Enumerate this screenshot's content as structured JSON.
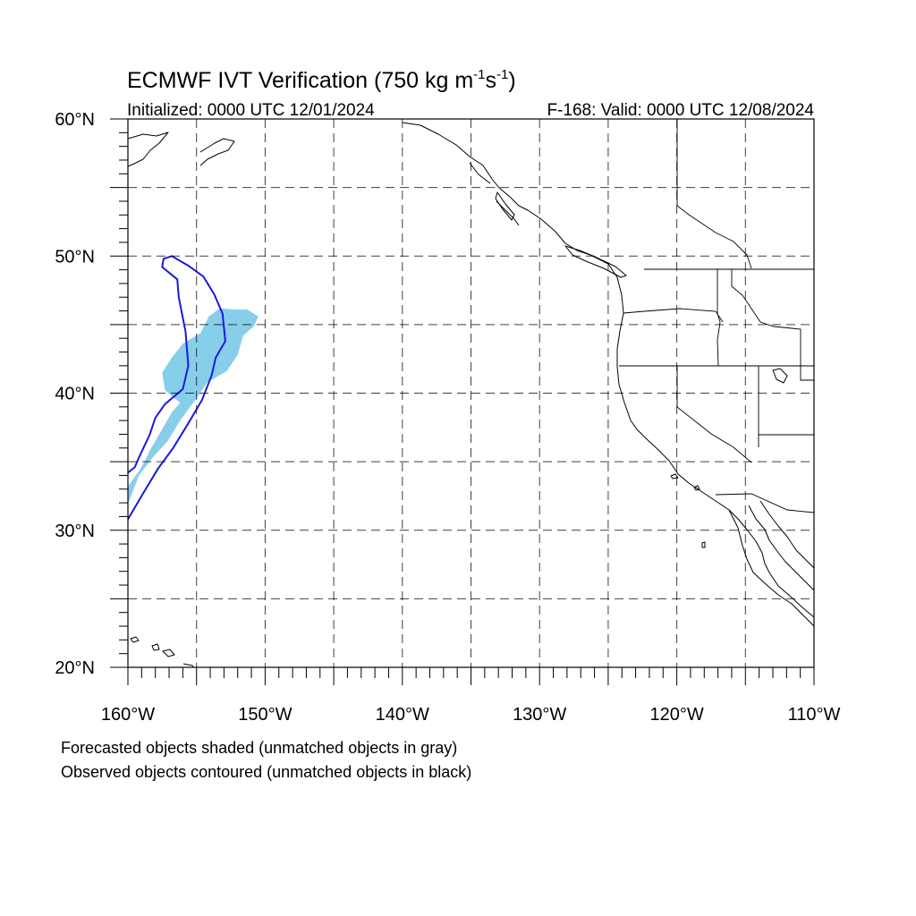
{
  "title": {
    "main": "ECMWF IVT Verification (750 kg m",
    "sup1": "-1",
    "mid": "s",
    "sup2": "-1",
    "end": ")"
  },
  "subtitle_left": "Initialized: 0000 UTC 12/01/2024",
  "subtitle_right": "F-168: Valid: 0000 UTC 12/08/2024",
  "map": {
    "lon_range": [
      -160,
      -110
    ],
    "lat_range": [
      20,
      60
    ],
    "lon_labels": [
      {
        "lon": -160,
        "text": "160°W"
      },
      {
        "lon": -150,
        "text": "150°W"
      },
      {
        "lon": -140,
        "text": "140°W"
      },
      {
        "lon": -130,
        "text": "130°W"
      },
      {
        "lon": -120,
        "text": "120°W"
      },
      {
        "lon": -110,
        "text": "110°W"
      }
    ],
    "lat_labels": [
      {
        "lat": 60,
        "text": "60°N"
      },
      {
        "lat": 50,
        "text": "50°N"
      },
      {
        "lat": 40,
        "text": "40°N"
      },
      {
        "lat": 30,
        "text": "30°N"
      },
      {
        "lat": 20,
        "text": "20°N"
      }
    ],
    "grid_lons": [
      -155,
      -150,
      -145,
      -140,
      -135,
      -130,
      -125,
      -120,
      -115
    ],
    "grid_lats": [
      25,
      30,
      35,
      40,
      45,
      50,
      55
    ],
    "forecast_color": "#87ceeb",
    "observed_color": "#1a1adc",
    "forecast_object": [
      [
        -160,
        33.2
      ],
      [
        -159,
        34.6
      ],
      [
        -158.3,
        36
      ],
      [
        -157.6,
        37.2
      ],
      [
        -156.8,
        38.6
      ],
      [
        -156.2,
        39.3
      ],
      [
        -157.3,
        40.2
      ],
      [
        -157.5,
        41.5
      ],
      [
        -156.8,
        42.6
      ],
      [
        -156,
        43.6
      ],
      [
        -154.7,
        44.4
      ],
      [
        -154.1,
        45.6
      ],
      [
        -153.3,
        46.2
      ],
      [
        -152.3,
        46.1
      ],
      [
        -151.3,
        46.1
      ],
      [
        -150.5,
        45.6
      ],
      [
        -150.8,
        44.9
      ],
      [
        -151.6,
        44.2
      ],
      [
        -152,
        42.8
      ],
      [
        -152.8,
        41.6
      ],
      [
        -154.2,
        40.8
      ],
      [
        -155.1,
        39.5
      ],
      [
        -156.2,
        38
      ],
      [
        -157.1,
        36.5
      ],
      [
        -158.2,
        35.3
      ],
      [
        -159.2,
        34
      ],
      [
        -160,
        31.9
      ]
    ],
    "observed_object": [
      [
        -160,
        30.8
      ],
      [
        -159,
        32.5
      ],
      [
        -157.8,
        34.5
      ],
      [
        -156.7,
        36
      ],
      [
        -155.6,
        37.8
      ],
      [
        -154.6,
        39.5
      ],
      [
        -153.9,
        41.3
      ],
      [
        -153.6,
        42.6
      ],
      [
        -152.9,
        43.8
      ],
      [
        -153.1,
        45.8
      ],
      [
        -153.7,
        47.2
      ],
      [
        -154.5,
        48.5
      ],
      [
        -155.6,
        49.3
      ],
      [
        -156.8,
        50
      ],
      [
        -157.4,
        49.8
      ],
      [
        -157.5,
        49.2
      ],
      [
        -156.4,
        48.3
      ],
      [
        -156.3,
        47
      ],
      [
        -155.8,
        44.5
      ],
      [
        -155.6,
        42
      ],
      [
        -156,
        40.3
      ],
      [
        -157.3,
        39.2
      ],
      [
        -158,
        38.2
      ],
      [
        -158.4,
        37
      ],
      [
        -159.2,
        35.3
      ],
      [
        -159.5,
        34.6
      ],
      [
        -160,
        34.2
      ]
    ]
  },
  "captions": [
    "Forecasted objects shaded (unmatched objects in gray)",
    "Observed objects contoured (unmatched objects in black)"
  ]
}
